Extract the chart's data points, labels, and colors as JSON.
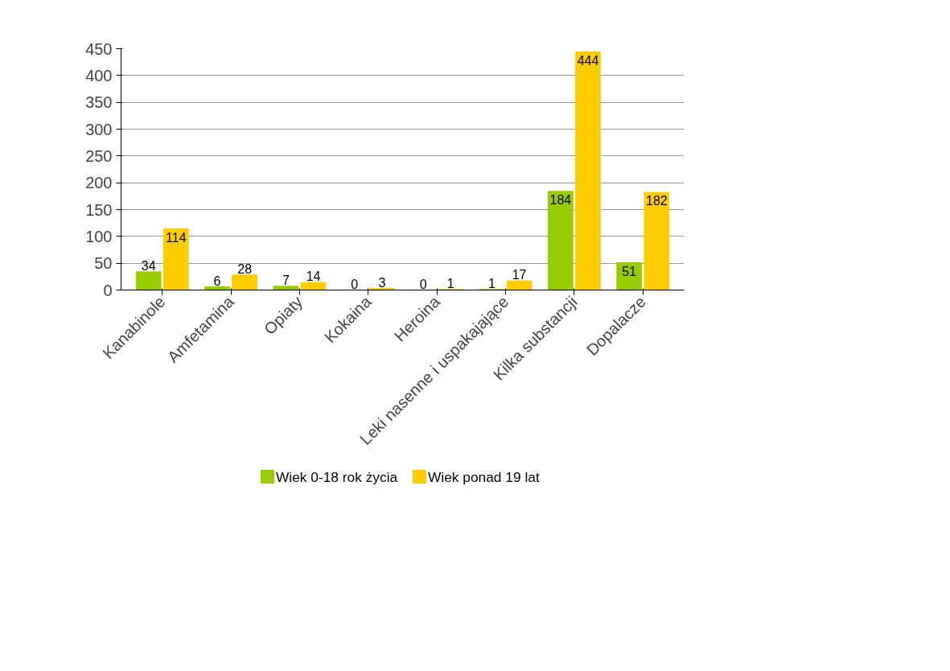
{
  "chart_data": {
    "type": "bar",
    "categories": [
      "Kanabinole",
      "Amfetamina",
      "Opiaty",
      "Kokaina",
      "Heroina",
      "Leki nasenne i uspakajające",
      "Kilka substancji",
      "Dopalacze"
    ],
    "series": [
      {
        "name": "Wiek 0-18 rok życia",
        "color": "#99cc00",
        "values": [
          34,
          6,
          7,
          0,
          0,
          1,
          184,
          51
        ]
      },
      {
        "name": "Wiek ponad 19 lat",
        "color": "#ffcc00",
        "values": [
          114,
          28,
          14,
          3,
          1,
          17,
          444,
          182
        ]
      }
    ],
    "ylim": [
      0,
      450
    ],
    "yticks": [
      0,
      50,
      100,
      150,
      200,
      250,
      300,
      350,
      400,
      450
    ],
    "grid": "y",
    "legend": "bottom",
    "data_labels": true
  }
}
